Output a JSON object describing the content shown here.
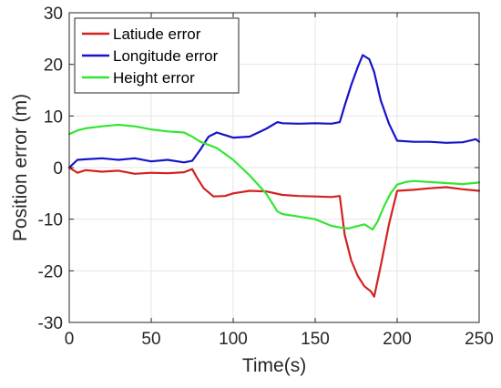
{
  "chart_data": {
    "type": "line",
    "xlabel": "Time(s)",
    "ylabel": "Position error (m)",
    "xlim": [
      0,
      250
    ],
    "ylim": [
      -30,
      30
    ],
    "x_ticks": [
      0,
      50,
      100,
      150,
      200,
      250
    ],
    "y_ticks": [
      -30,
      -20,
      -10,
      0,
      10,
      20,
      30
    ],
    "x_tick_labels": [
      "0",
      "50",
      "100",
      "150",
      "200",
      "250"
    ],
    "y_tick_labels": [
      "-30",
      "-20",
      "-10",
      "0",
      "10",
      "20",
      "30"
    ],
    "grid": true,
    "legend_position": "top-left",
    "series": [
      {
        "name": "Latiude error",
        "color": "#d42020",
        "x": [
          0,
          5,
          10,
          20,
          30,
          40,
          50,
          60,
          70,
          75,
          78,
          82,
          88,
          95,
          100,
          110,
          120,
          130,
          140,
          150,
          160,
          165,
          168,
          172,
          176,
          180,
          184,
          186,
          190,
          195,
          200,
          210,
          220,
          230,
          240,
          250
        ],
        "y": [
          0,
          -1,
          -0.5,
          -0.8,
          -0.6,
          -1.2,
          -1.0,
          -1.1,
          -0.9,
          -0.3,
          -2.0,
          -4.0,
          -5.6,
          -5.5,
          -5.0,
          -4.5,
          -4.6,
          -5.3,
          -5.5,
          -5.6,
          -5.7,
          -5.5,
          -13,
          -18,
          -21,
          -23,
          -24,
          -25,
          -19,
          -11,
          -4.5,
          -4.3,
          -4.0,
          -3.8,
          -4.2,
          -4.5
        ]
      },
      {
        "name": "Longitude error",
        "color": "#1414c8",
        "x": [
          0,
          5,
          10,
          20,
          30,
          40,
          50,
          60,
          70,
          75,
          80,
          85,
          90,
          95,
          100,
          110,
          120,
          127,
          130,
          140,
          150,
          160,
          165,
          168,
          172,
          176,
          179,
          183,
          186,
          190,
          195,
          200,
          210,
          220,
          230,
          240,
          248,
          250
        ],
        "y": [
          0,
          1.5,
          1.6,
          1.8,
          1.5,
          1.8,
          1.2,
          1.5,
          1.0,
          1.3,
          3.5,
          6.0,
          6.8,
          6.3,
          5.8,
          6.0,
          7.5,
          8.8,
          8.6,
          8.5,
          8.6,
          8.5,
          8.8,
          12,
          16,
          19.5,
          21.8,
          21,
          18.5,
          13,
          8.5,
          5.2,
          5.0,
          5.0,
          4.8,
          4.9,
          5.5,
          5.0
        ]
      },
      {
        "name": "Height error",
        "color": "#32e632",
        "x": [
          0,
          5,
          10,
          20,
          30,
          40,
          50,
          60,
          70,
          75,
          80,
          90,
          100,
          110,
          120,
          127,
          130,
          140,
          150,
          160,
          165,
          170,
          180,
          185,
          188,
          192,
          196,
          200,
          205,
          210,
          220,
          230,
          240,
          250
        ],
        "y": [
          6.5,
          7.2,
          7.6,
          8.0,
          8.3,
          8.0,
          7.4,
          7.0,
          6.8,
          6.0,
          5.0,
          3.8,
          1.5,
          -1.5,
          -5.0,
          -8.5,
          -9.0,
          -9.5,
          -10.0,
          -11.3,
          -11.6,
          -11.8,
          -11.0,
          -12.0,
          -10.5,
          -7.5,
          -5.0,
          -3.3,
          -2.8,
          -2.6,
          -2.8,
          -3.0,
          -3.2,
          -2.9
        ]
      }
    ]
  }
}
